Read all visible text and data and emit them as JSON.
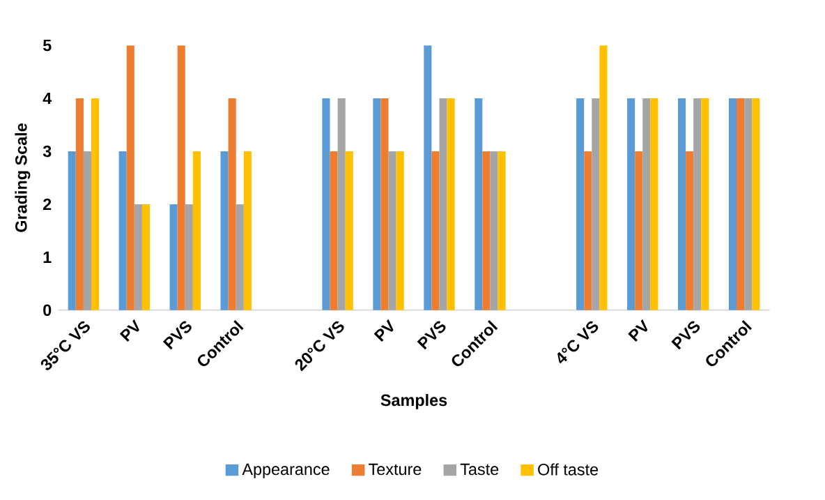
{
  "chart_data": {
    "type": "bar",
    "xlabel": "Samples",
    "ylabel": "Grading Scale",
    "categories": [
      "35°C VS",
      "PV",
      "PVS",
      "Control",
      null,
      "20°C VS",
      "PV",
      "PVS",
      "Control",
      null,
      "4°C VS",
      "PV",
      "PVS",
      "Control"
    ],
    "series": [
      {
        "name": "Appearance",
        "color": "#5b9bd5",
        "values": [
          3,
          3,
          2,
          3,
          null,
          4,
          4,
          5,
          4,
          null,
          4,
          4,
          4,
          4
        ]
      },
      {
        "name": "Texture",
        "color": "#ed7d31",
        "values": [
          4,
          5,
          5,
          4,
          null,
          3,
          4,
          3,
          3,
          null,
          3,
          3,
          3,
          4
        ]
      },
      {
        "name": "Taste",
        "color": "#a5a5a5",
        "values": [
          3,
          2,
          2,
          2,
          null,
          4,
          3,
          4,
          3,
          null,
          4,
          4,
          4,
          4
        ]
      },
      {
        "name": "Off taste",
        "color": "#ffc000",
        "values": [
          4,
          2,
          3,
          3,
          null,
          3,
          3,
          4,
          3,
          null,
          5,
          4,
          4,
          4
        ]
      }
    ],
    "ylim": [
      0,
      5
    ],
    "yticks": [
      0,
      1,
      2,
      3,
      4,
      5
    ],
    "grid": false,
    "legend": "bottom"
  }
}
